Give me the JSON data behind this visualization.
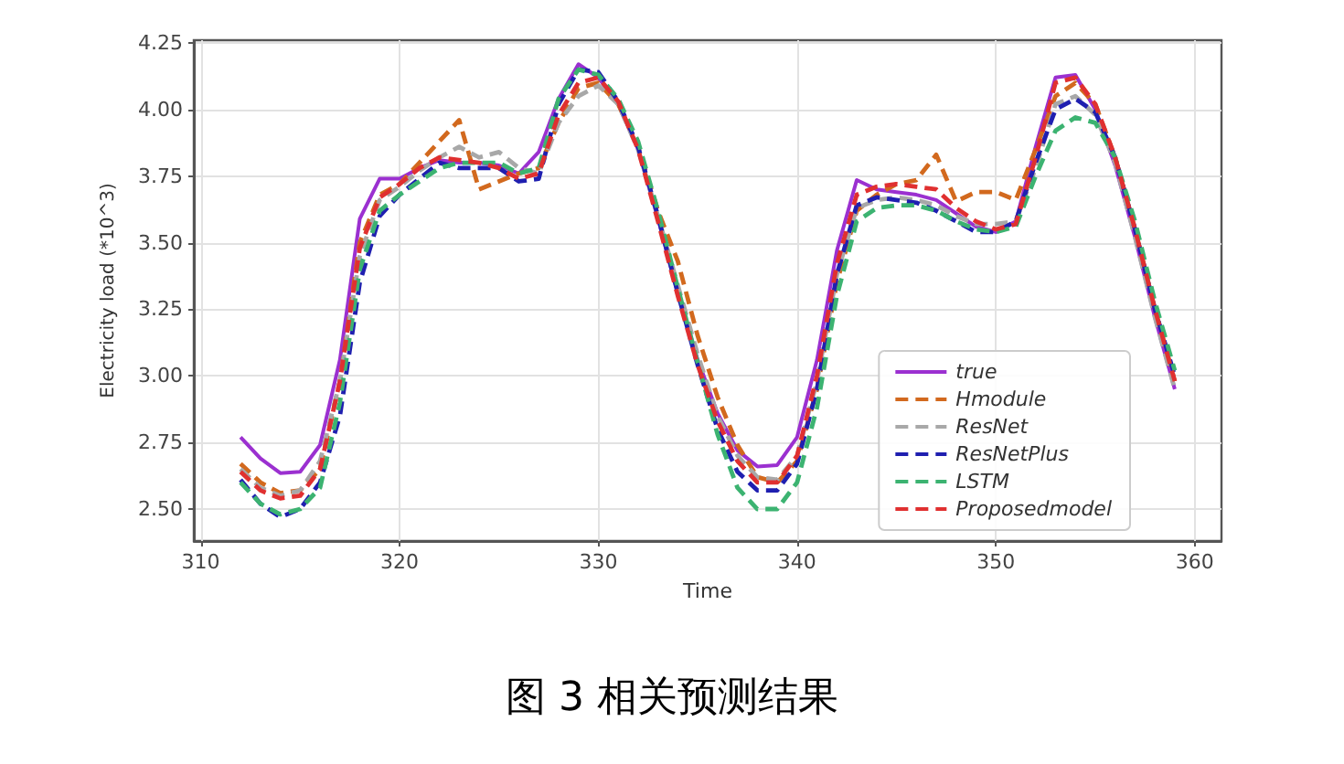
{
  "chart_data": {
    "type": "line",
    "title": "图 3 相关预测结果",
    "xlabel": "Time",
    "ylabel": "Electricity load (*10^3)",
    "x": [
      312,
      313,
      314,
      315,
      316,
      317,
      318,
      319,
      320,
      321,
      322,
      323,
      324,
      325,
      326,
      327,
      328,
      329,
      330,
      331,
      332,
      333,
      334,
      335,
      336,
      337,
      338,
      339,
      340,
      341,
      342,
      343,
      344,
      345,
      346,
      347,
      348,
      349,
      350,
      351,
      352,
      353,
      354,
      355,
      356,
      357,
      358,
      359
    ],
    "series": [
      {
        "name": "true",
        "color": "#9b30d0",
        "line_style": "solid",
        "values": [
          2.77,
          2.69,
          2.635,
          2.64,
          2.74,
          3.06,
          3.59,
          3.74,
          3.74,
          3.78,
          3.81,
          3.8,
          3.8,
          3.79,
          3.76,
          3.84,
          4.04,
          4.17,
          4.12,
          4.02,
          3.85,
          3.59,
          3.31,
          3.06,
          2.86,
          2.72,
          2.66,
          2.665,
          2.77,
          3.06,
          3.47,
          3.735,
          3.7,
          3.69,
          3.68,
          3.66,
          3.61,
          3.56,
          3.54,
          3.58,
          3.86,
          4.12,
          4.13,
          4.0,
          3.79,
          3.52,
          3.22,
          2.95
        ]
      },
      {
        "name": "Hmodule",
        "color": "#d2691e",
        "line_style": "dashed",
        "values": [
          2.67,
          2.6,
          2.56,
          2.57,
          2.65,
          2.98,
          3.5,
          3.68,
          3.72,
          3.8,
          3.88,
          3.96,
          3.7,
          3.73,
          3.76,
          3.78,
          3.95,
          4.08,
          4.1,
          4.02,
          3.86,
          3.62,
          3.43,
          3.15,
          2.92,
          2.74,
          2.62,
          2.6,
          2.68,
          2.95,
          3.35,
          3.62,
          3.68,
          3.72,
          3.735,
          3.83,
          3.655,
          3.69,
          3.69,
          3.66,
          3.85,
          4.05,
          4.1,
          4.02,
          3.82,
          3.55,
          3.25,
          2.98
        ]
      },
      {
        "name": "ResNet",
        "color": "#a8a8a8",
        "line_style": "dashed",
        "values": [
          2.65,
          2.58,
          2.55,
          2.57,
          2.68,
          2.98,
          3.45,
          3.66,
          3.71,
          3.77,
          3.82,
          3.86,
          3.82,
          3.84,
          3.78,
          3.76,
          3.95,
          4.05,
          4.09,
          4.02,
          3.85,
          3.6,
          3.34,
          3.08,
          2.85,
          2.7,
          2.62,
          2.61,
          2.7,
          2.98,
          3.38,
          3.63,
          3.66,
          3.67,
          3.66,
          3.64,
          3.6,
          3.57,
          3.57,
          3.58,
          3.78,
          4.02,
          4.05,
          3.98,
          3.8,
          3.52,
          3.22,
          2.95
        ]
      },
      {
        "name": "ResNetPlus",
        "color": "#1f1fb0",
        "line_style": "dashed",
        "values": [
          2.61,
          2.52,
          2.47,
          2.5,
          2.6,
          2.85,
          3.35,
          3.6,
          3.68,
          3.74,
          3.8,
          3.78,
          3.78,
          3.78,
          3.73,
          3.74,
          4.02,
          4.15,
          4.14,
          4.03,
          3.86,
          3.6,
          3.31,
          3.04,
          2.8,
          2.64,
          2.57,
          2.57,
          2.67,
          2.95,
          3.38,
          3.64,
          3.67,
          3.66,
          3.65,
          3.62,
          3.58,
          3.54,
          3.54,
          3.58,
          3.8,
          4.0,
          4.04,
          3.99,
          3.82,
          3.55,
          3.25,
          3.0
        ]
      },
      {
        "name": "LSTM",
        "color": "#3cb371",
        "line_style": "dashed",
        "values": [
          2.6,
          2.52,
          2.48,
          2.5,
          2.58,
          2.9,
          3.4,
          3.62,
          3.68,
          3.73,
          3.78,
          3.8,
          3.8,
          3.8,
          3.76,
          3.78,
          4.04,
          4.15,
          4.13,
          4.04,
          3.88,
          3.62,
          3.33,
          3.05,
          2.78,
          2.58,
          2.5,
          2.5,
          2.6,
          2.88,
          3.3,
          3.58,
          3.63,
          3.64,
          3.64,
          3.62,
          3.58,
          3.55,
          3.54,
          3.56,
          3.75,
          3.92,
          3.97,
          3.95,
          3.82,
          3.58,
          3.28,
          3.02
        ]
      },
      {
        "name": "Proposedmodel",
        "color": "#e03030",
        "line_style": "dashed",
        "values": [
          2.64,
          2.57,
          2.54,
          2.55,
          2.65,
          2.98,
          3.48,
          3.67,
          3.72,
          3.78,
          3.82,
          3.81,
          3.8,
          3.78,
          3.74,
          3.76,
          3.98,
          4.1,
          4.12,
          4.03,
          3.85,
          3.58,
          3.3,
          3.04,
          2.83,
          2.68,
          2.6,
          2.6,
          2.7,
          3.0,
          3.42,
          3.68,
          3.71,
          3.72,
          3.71,
          3.7,
          3.63,
          3.58,
          3.55,
          3.57,
          3.82,
          4.1,
          4.12,
          4.02,
          3.82,
          3.55,
          3.25,
          2.98
        ]
      }
    ],
    "xlim": [
      309.65,
      361.35
    ],
    "xticks": [
      310,
      320,
      330,
      340,
      350,
      360
    ],
    "ylim": [
      2.38,
      4.26
    ],
    "yticks": [
      {
        "value": 2.5,
        "label": "2.50"
      },
      {
        "value": 2.75,
        "label": "2.75"
      },
      {
        "value": 3.0,
        "label": "3.00"
      },
      {
        "value": 3.25,
        "label": "3.25"
      },
      {
        "value": 3.5,
        "label": "3.50"
      },
      {
        "value": 3.75,
        "label": "3.75"
      },
      {
        "value": 4.0,
        "label": "4.00"
      },
      {
        "value": 4.25,
        "label": "4.25"
      }
    ],
    "grid": true,
    "legend": "bottom right",
    "marker": "none"
  }
}
